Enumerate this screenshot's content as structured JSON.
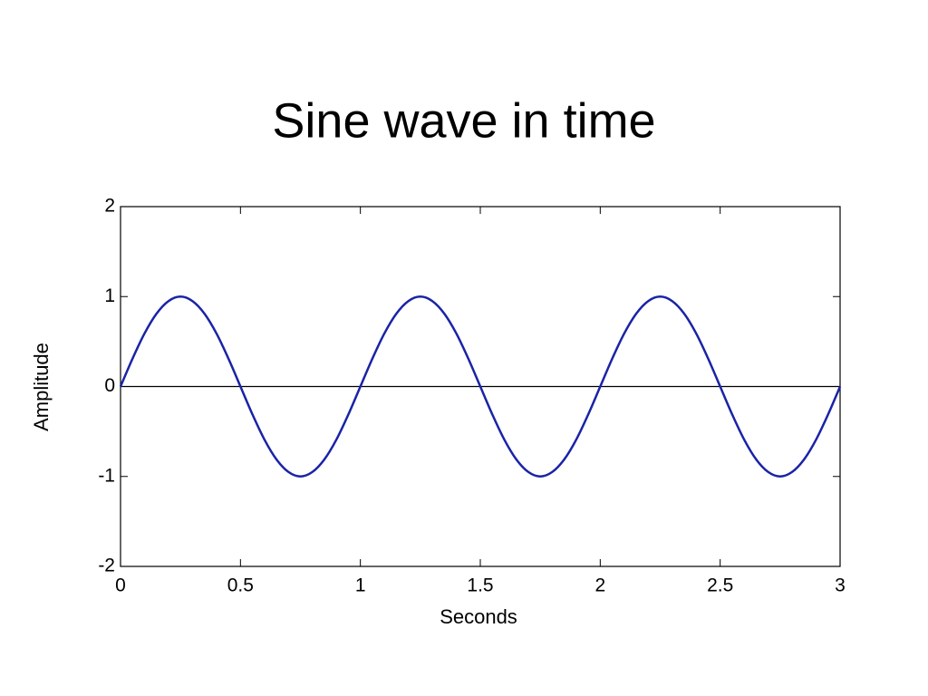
{
  "chart_data": {
    "type": "line",
    "title": "Sine wave in time",
    "xlabel": "Seconds",
    "ylabel": "Amplitude",
    "x": [
      0,
      0.05,
      0.1,
      0.15,
      0.2,
      0.25,
      0.3,
      0.35,
      0.4,
      0.45,
      0.5,
      0.55,
      0.6,
      0.65,
      0.7,
      0.75,
      0.8,
      0.85,
      0.9,
      0.95,
      1,
      1.05,
      1.1,
      1.15,
      1.2,
      1.25,
      1.3,
      1.35,
      1.4,
      1.45,
      1.5,
      1.55,
      1.6,
      1.65,
      1.7,
      1.75,
      1.8,
      1.85,
      1.9,
      1.95,
      2,
      2.05,
      2.1,
      2.15,
      2.2,
      2.25,
      2.3,
      2.35,
      2.4,
      2.45,
      2.5,
      2.55,
      2.6,
      2.65,
      2.7,
      2.75,
      2.8,
      2.85,
      2.9,
      2.95,
      3
    ],
    "values": [
      0,
      0.31,
      0.59,
      0.81,
      0.95,
      1,
      0.95,
      0.81,
      0.59,
      0.31,
      0,
      -0.31,
      -0.59,
      -0.81,
      -0.95,
      -1,
      -0.95,
      -0.81,
      -0.59,
      -0.31,
      0,
      0.31,
      0.59,
      0.81,
      0.95,
      1,
      0.95,
      0.81,
      0.59,
      0.31,
      0,
      -0.31,
      -0.59,
      -0.81,
      -0.95,
      -1,
      -0.95,
      -0.81,
      -0.59,
      -0.31,
      0,
      0.31,
      0.59,
      0.81,
      0.95,
      1,
      0.95,
      0.81,
      0.59,
      0.31,
      0,
      -0.31,
      -0.59,
      -0.81,
      -0.95,
      -1,
      -0.95,
      -0.81,
      -0.59,
      -0.31,
      0
    ],
    "color": "#1a23a6",
    "reference_line": 0,
    "reference_color": "#000000",
    "xlim": [
      0,
      3
    ],
    "xticks": [
      0,
      0.5,
      1,
      1.5,
      2,
      2.5,
      3
    ],
    "ylim": [
      -2,
      2
    ],
    "yticks": [
      -2,
      -1,
      0,
      1,
      2
    ],
    "grid": false
  }
}
